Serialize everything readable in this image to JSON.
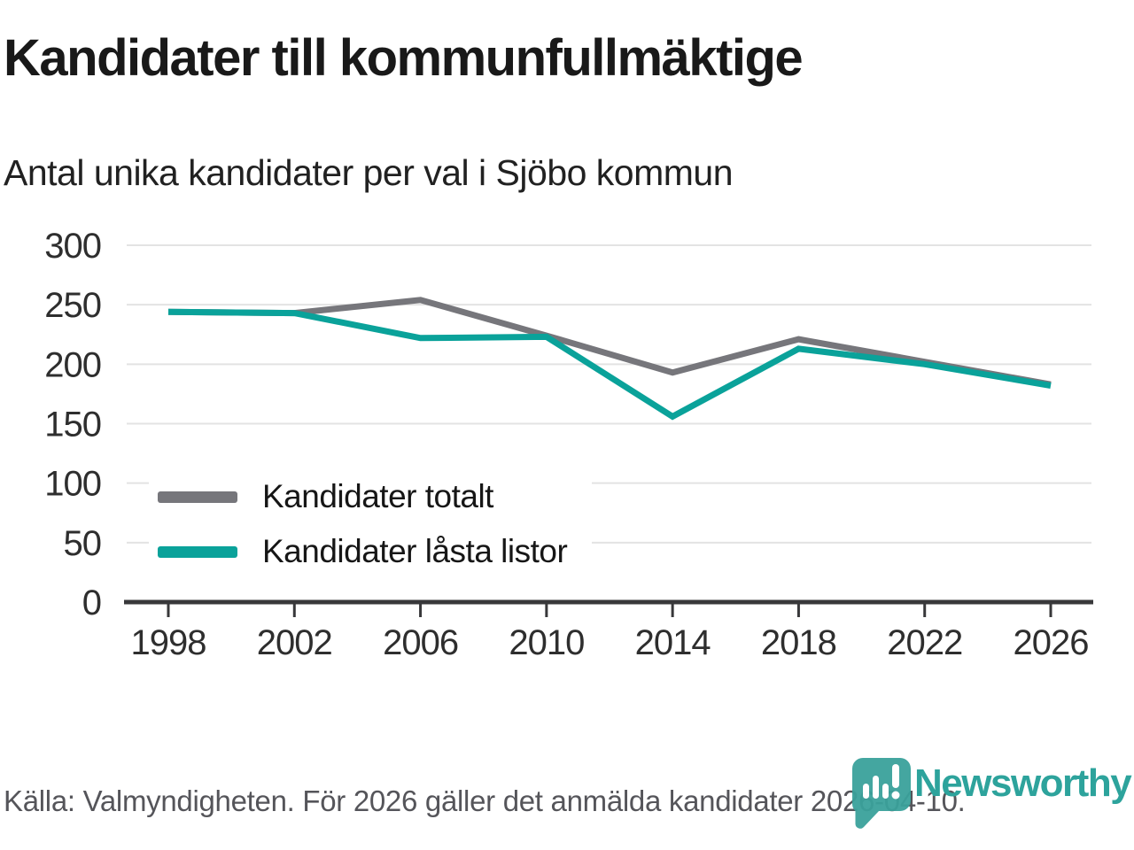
{
  "header": {
    "title": "Kandidater till kommunfullmäktige",
    "subtitle": "Antal unika kandidater per val i Sjöbo kommun"
  },
  "chart_data": {
    "type": "line",
    "categories": [
      "1998",
      "2002",
      "2006",
      "2010",
      "2014",
      "2018",
      "2022",
      "2026"
    ],
    "series": [
      {
        "name": "Kandidater totalt",
        "color": "#76767b",
        "values": [
          244,
          243,
          254,
          224,
          193,
          221,
          202,
          183
        ]
      },
      {
        "name": "Kandidater låsta listor",
        "color": "#0aa29a",
        "values": [
          244,
          243,
          222,
          223,
          156,
          213,
          200,
          182
        ]
      }
    ],
    "title": "Kandidater till kommunfullmäktige",
    "subtitle": "Antal unika kandidater per val i Sjöbo kommun",
    "xlabel": "",
    "ylabel": "",
    "ylim": [
      0,
      300
    ],
    "yticks": [
      0,
      50,
      100,
      150,
      200,
      250,
      300
    ],
    "grid": true,
    "legend_position": "inside-bottom-left",
    "gridline_color": "#e3e3e3",
    "axis_line_color": "#38383a",
    "tick_label_color": "#2e2e2e"
  },
  "footer": {
    "source": "Källa: Valmyndigheten. För 2026 gäller det anmälda kandidater 2026-04-10.",
    "brand": "Newsworthy",
    "brand_color": "#2da39c",
    "logo_color": "#3aa19b"
  }
}
